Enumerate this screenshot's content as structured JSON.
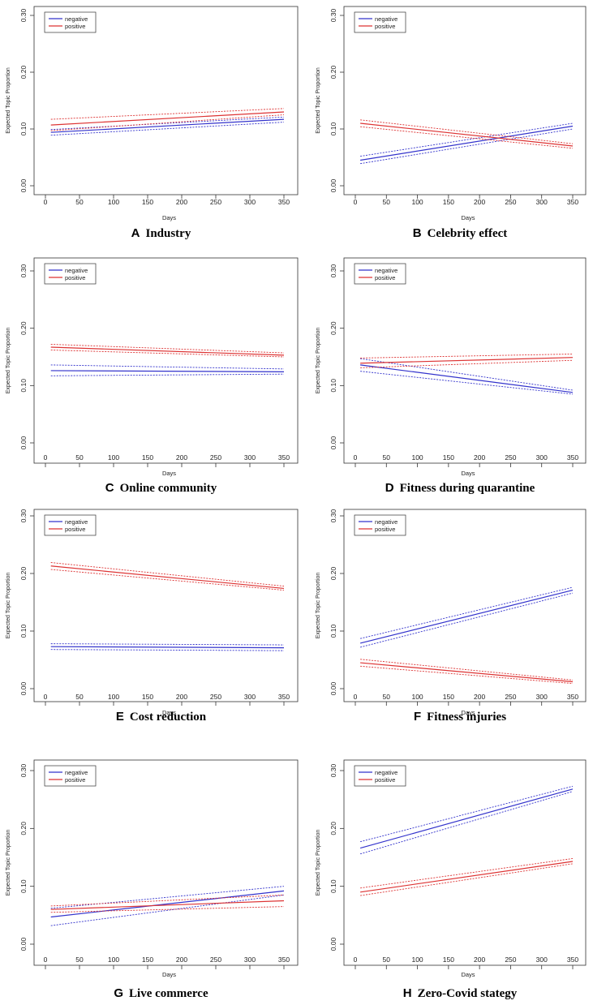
{
  "colors": {
    "negative": "#3333cc",
    "positive": "#dd3333",
    "axis": "#333333"
  },
  "chart_data": [
    {
      "type": "line",
      "letter": "A",
      "title": "Industry",
      "xlabel": "Days",
      "ylabel": "Expected Topic Proportion",
      "xlim": [
        0,
        360
      ],
      "ylim": [
        0,
        0.3
      ],
      "xticks": [
        "0",
        "50",
        "100",
        "150",
        "200",
        "250",
        "300",
        "350"
      ],
      "yticks": [
        "0.00",
        "0.10",
        "0.20",
        "0.30"
      ],
      "legend": [
        "negative",
        "positive"
      ],
      "legend_position": "top-left",
      "series": [
        {
          "name": "negative",
          "x": [
            8,
            350
          ],
          "mean": [
            0.094,
            0.117
          ],
          "lower": [
            0.089,
            0.112
          ],
          "upper": [
            0.099,
            0.121
          ]
        },
        {
          "name": "positive",
          "x": [
            8,
            350
          ],
          "mean": [
            0.107,
            0.13
          ],
          "lower": [
            0.097,
            0.125
          ],
          "upper": [
            0.117,
            0.136
          ]
        }
      ]
    },
    {
      "type": "line",
      "letter": "B",
      "title": "Celebrity effect",
      "xlabel": "Days",
      "ylabel": "Expected Topic Proportion",
      "xlim": [
        0,
        360
      ],
      "ylim": [
        0,
        0.3
      ],
      "xticks": [
        "0",
        "50",
        "100",
        "150",
        "200",
        "250",
        "300",
        "350"
      ],
      "yticks": [
        "0.00",
        "0.10",
        "0.20",
        "0.30"
      ],
      "legend": [
        "negative",
        "positive"
      ],
      "legend_position": "top-left",
      "series": [
        {
          "name": "negative",
          "x": [
            8,
            350
          ],
          "mean": [
            0.045,
            0.105
          ],
          "lower": [
            0.039,
            0.1
          ],
          "upper": [
            0.052,
            0.11
          ]
        },
        {
          "name": "positive",
          "x": [
            8,
            350
          ],
          "mean": [
            0.11,
            0.07
          ],
          "lower": [
            0.104,
            0.066
          ],
          "upper": [
            0.116,
            0.074
          ]
        }
      ]
    },
    {
      "type": "line",
      "letter": "C",
      "title": "Online community",
      "xlabel": "Days",
      "ylabel": "Expected Topic Proportion",
      "xlim": [
        0,
        360
      ],
      "ylim": [
        0,
        0.3
      ],
      "xticks": [
        "0",
        "50",
        "100",
        "150",
        "200",
        "250",
        "300",
        "350"
      ],
      "yticks": [
        "0.00",
        "0.10",
        "0.20",
        "0.30"
      ],
      "legend": [
        "negative",
        "positive"
      ],
      "legend_position": "top-left",
      "series": [
        {
          "name": "negative",
          "x": [
            8,
            350
          ],
          "mean": [
            0.126,
            0.124
          ],
          "lower": [
            0.117,
            0.12
          ],
          "upper": [
            0.136,
            0.129
          ]
        },
        {
          "name": "positive",
          "x": [
            8,
            350
          ],
          "mean": [
            0.167,
            0.153
          ],
          "lower": [
            0.162,
            0.15
          ],
          "upper": [
            0.172,
            0.157
          ]
        }
      ]
    },
    {
      "type": "line",
      "letter": "D",
      "title": "Fitness during quarantine",
      "xlabel": "Days",
      "ylabel": "Expected Topic Proportion",
      "xlim": [
        0,
        360
      ],
      "ylim": [
        0,
        0.3
      ],
      "xticks": [
        "0",
        "50",
        "100",
        "150",
        "200",
        "250",
        "300",
        "350"
      ],
      "yticks": [
        "0.00",
        "0.10",
        "0.20",
        "0.30"
      ],
      "legend": [
        "negative",
        "positive"
      ],
      "legend_position": "top-left",
      "series": [
        {
          "name": "negative",
          "x": [
            8,
            350
          ],
          "mean": [
            0.136,
            0.088
          ],
          "lower": [
            0.125,
            0.085
          ],
          "upper": [
            0.147,
            0.092
          ]
        },
        {
          "name": "positive",
          "x": [
            8,
            350
          ],
          "mean": [
            0.139,
            0.149
          ],
          "lower": [
            0.131,
            0.144
          ],
          "upper": [
            0.148,
            0.155
          ]
        }
      ]
    },
    {
      "type": "line",
      "letter": "E",
      "title": "Cost reduction",
      "xlabel": "Days",
      "ylabel": "Expected Topic Proportion",
      "xlim": [
        0,
        360
      ],
      "ylim": [
        0,
        0.3
      ],
      "xticks": [
        "0",
        "50",
        "100",
        "150",
        "200",
        "250",
        "300",
        "350"
      ],
      "yticks": [
        "0.00",
        "0.10",
        "0.20",
        "0.30"
      ],
      "legend": [
        "negative",
        "positive"
      ],
      "legend_position": "top-left",
      "series": [
        {
          "name": "negative",
          "x": [
            8,
            350
          ],
          "mean": [
            0.073,
            0.071
          ],
          "lower": [
            0.068,
            0.066
          ],
          "upper": [
            0.078,
            0.076
          ]
        },
        {
          "name": "positive",
          "x": [
            8,
            350
          ],
          "mean": [
            0.213,
            0.174
          ],
          "lower": [
            0.207,
            0.171
          ],
          "upper": [
            0.219,
            0.178
          ]
        }
      ]
    },
    {
      "type": "line",
      "letter": "F",
      "title": "Fitness injuries",
      "xlabel": "Days",
      "ylabel": "Expected Topic Proportion",
      "xlim": [
        0,
        360
      ],
      "ylim": [
        0,
        0.3
      ],
      "xticks": [
        "0",
        "50",
        "100",
        "150",
        "200",
        "250",
        "300",
        "350"
      ],
      "yticks": [
        "0.00",
        "0.10",
        "0.20",
        "0.30"
      ],
      "legend": [
        "negative",
        "positive"
      ],
      "legend_position": "top-left",
      "series": [
        {
          "name": "negative",
          "x": [
            8,
            350
          ],
          "mean": [
            0.079,
            0.171
          ],
          "lower": [
            0.072,
            0.166
          ],
          "upper": [
            0.087,
            0.176
          ]
        },
        {
          "name": "positive",
          "x": [
            8,
            350
          ],
          "mean": [
            0.045,
            0.012
          ],
          "lower": [
            0.039,
            0.009
          ],
          "upper": [
            0.051,
            0.015
          ]
        }
      ]
    },
    {
      "type": "line",
      "letter": "G",
      "title": "Live commerce",
      "xlabel": "Days",
      "ylabel": "Expected Topic Proportion",
      "xlim": [
        0,
        360
      ],
      "ylim": [
        0,
        0.3
      ],
      "xticks": [
        "0",
        "50",
        "100",
        "150",
        "200",
        "250",
        "300",
        "350"
      ],
      "yticks": [
        "0.00",
        "0.10",
        "0.20",
        "0.30"
      ],
      "legend": [
        "negative",
        "positive"
      ],
      "legend_position": "top-left",
      "series": [
        {
          "name": "negative",
          "x": [
            8,
            350
          ],
          "mean": [
            0.047,
            0.092
          ],
          "lower": [
            0.032,
            0.085
          ],
          "upper": [
            0.062,
            0.1
          ]
        },
        {
          "name": "positive",
          "x": [
            8,
            350
          ],
          "mean": [
            0.06,
            0.075
          ],
          "lower": [
            0.055,
            0.065
          ],
          "upper": [
            0.066,
            0.085
          ]
        }
      ]
    },
    {
      "type": "line",
      "letter": "H",
      "title": "Zero-Covid stategy",
      "xlabel": "Days",
      "ylabel": "Expected Topic Proportion",
      "xlim": [
        0,
        360
      ],
      "ylim": [
        0,
        0.3
      ],
      "xticks": [
        "0",
        "50",
        "100",
        "150",
        "200",
        "250",
        "300",
        "350"
      ],
      "yticks": [
        "0.00",
        "0.10",
        "0.20",
        "0.30"
      ],
      "legend": [
        "negative",
        "positive"
      ],
      "legend_position": "top-left",
      "series": [
        {
          "name": "negative",
          "x": [
            8,
            350
          ],
          "mean": [
            0.166,
            0.268
          ],
          "lower": [
            0.156,
            0.264
          ],
          "upper": [
            0.177,
            0.273
          ]
        },
        {
          "name": "positive",
          "x": [
            8,
            350
          ],
          "mean": [
            0.09,
            0.143
          ],
          "lower": [
            0.084,
            0.139
          ],
          "upper": [
            0.097,
            0.148
          ]
        }
      ]
    }
  ]
}
